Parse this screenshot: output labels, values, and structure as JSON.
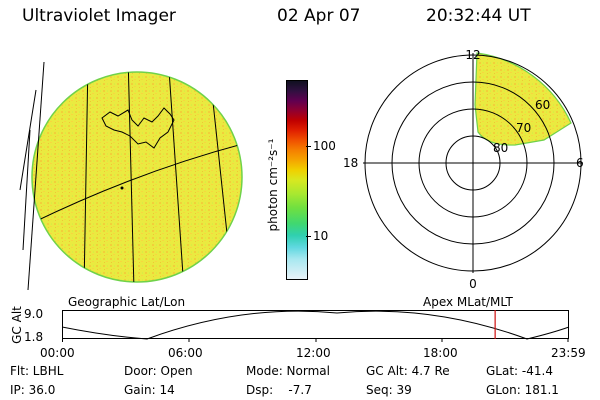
{
  "header": {
    "title": "Ultraviolet Imager",
    "date": "02 Apr 07",
    "time": "20:32:44 UT"
  },
  "colorbar": {
    "unit_label": "photon cm⁻²s⁻¹",
    "tick_labels": [
      "100",
      "10"
    ],
    "colors": [
      "#101020",
      "#301040",
      "#600050",
      "#900030",
      "#c00000",
      "#e02000",
      "#f05000",
      "#f58000",
      "#f5a500",
      "#f0d000",
      "#d8e820",
      "#a8e830",
      "#70e040",
      "#40d870",
      "#30d0b0",
      "#60d8e0",
      "#a8e8f0",
      "#e8f2f8"
    ]
  },
  "geo_panel": {
    "caption": "Geographic Lat/Lon"
  },
  "polar_panel": {
    "caption": "Apex MLat/MLT",
    "mlt_labels": {
      "top": "12",
      "left": "18",
      "right": "6",
      "bottom": "0"
    },
    "lat_labels": [
      "60",
      "70",
      "80"
    ]
  },
  "altitude_strip": {
    "axis_label": "GC Alt",
    "y_ticks": [
      "9.0",
      "1.8"
    ],
    "time_ticks": [
      "00:00",
      "06:00",
      "12:00",
      "18:00",
      "23:59"
    ],
    "current_time_fraction": 0.855,
    "marker_color": "#d01010"
  },
  "status": {
    "filter": "Flt: LBHL",
    "ip": "IP: 36.0",
    "door": "Door: Open",
    "gain": "Gain: 14",
    "mode": "Mode: Normal",
    "dsp": "Dsp:    -7.7",
    "gc_alt": "GC Alt: 4.7 Re",
    "seq": "Seq: 39",
    "glat": "GLat: -41.4",
    "glon": "GLon: 181.1"
  }
}
